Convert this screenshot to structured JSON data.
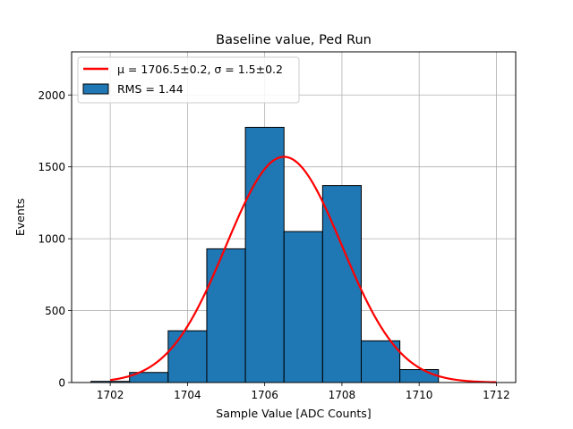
{
  "chart_data": {
    "type": "bar",
    "title": "Baseline value, Ped Run",
    "xlabel": "Sample Value [ADC Counts]",
    "ylabel": "Events",
    "xlim": [
      1701.0,
      1712.5
    ],
    "ylim": [
      0,
      2300
    ],
    "xticks": [
      1702,
      1704,
      1706,
      1708,
      1710,
      1712
    ],
    "yticks": [
      0,
      500,
      1000,
      1500,
      2000
    ],
    "grid": true,
    "legend_position": "upper-left",
    "bins": [
      {
        "x0": 1701.5,
        "x1": 1702.5,
        "count": 8
      },
      {
        "x0": 1702.5,
        "x1": 1703.5,
        "count": 70
      },
      {
        "x0": 1703.5,
        "x1": 1704.5,
        "count": 360
      },
      {
        "x0": 1704.5,
        "x1": 1705.5,
        "count": 930
      },
      {
        "x0": 1705.5,
        "x1": 1706.5,
        "count": 1775
      },
      {
        "x0": 1706.5,
        "x1": 1707.5,
        "count": 1050
      },
      {
        "x0": 1707.5,
        "x1": 1708.5,
        "count": 1370
      },
      {
        "x0": 1708.5,
        "x1": 1709.5,
        "count": 290
      },
      {
        "x0": 1709.5,
        "x1": 1710.5,
        "count": 90
      }
    ],
    "fit": {
      "mu": 1706.5,
      "sigma": 1.5,
      "amplitude": 1570,
      "x_range": [
        1702,
        1712
      ]
    },
    "legend": [
      {
        "label": "μ = 1706.5±0.2, σ = 1.5±0.2",
        "kind": "line",
        "color": "#ff0000"
      },
      {
        "label": "RMS = 1.44",
        "kind": "patch",
        "color": "#1f77b4"
      }
    ],
    "colors": {
      "bar": "#1f77b4",
      "fit": "#ff0000",
      "grid": "#b0b0b0"
    }
  }
}
